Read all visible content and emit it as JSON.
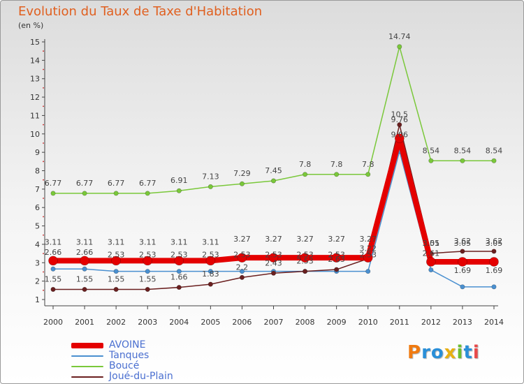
{
  "page": {
    "title": "Evolution du Taux de Taxe d'Habitation",
    "unit": "(en %)"
  },
  "logo": {
    "text": "Proxiti",
    "letters": [
      "P",
      "r",
      "o",
      "x",
      "i",
      "t",
      "i"
    ],
    "colors": [
      "#f07a10",
      "#2a8fd8",
      "#2a8fd8",
      "#e8b012",
      "#6cbe30",
      "#2a8fd8",
      "#e84a4a"
    ]
  },
  "chart_data": {
    "type": "line",
    "title": "Evolution du Taux de Taxe d'Habitation",
    "ylabel": "(en %)",
    "x": [
      "2000",
      "2001",
      "2002",
      "2003",
      "2004",
      "2005",
      "2006",
      "2007",
      "2008",
      "2009",
      "2010",
      "2011",
      "2012",
      "2013",
      "2014"
    ],
    "ylim": [
      1,
      15
    ],
    "yticks": [
      1,
      2,
      3,
      4,
      5,
      6,
      7,
      8,
      9,
      10,
      11,
      12,
      13,
      14,
      15
    ],
    "grid": false,
    "legend_position": "bottom-left",
    "series": [
      {
        "name": "AVOINE",
        "color": "#e40000",
        "values": [
          3.11,
          3.11,
          3.11,
          3.11,
          3.11,
          3.11,
          3.27,
          3.27,
          3.27,
          3.27,
          3.27,
          9.76,
          3.05,
          3.05,
          3.05
        ],
        "labels": [
          "3.11",
          "3.11",
          "3.11",
          "3.11",
          "3.11",
          "3.11",
          "3.27",
          "3.27",
          "3.27",
          "3.27",
          "3.27",
          "9.76",
          "3.05",
          "3.05",
          "3.05"
        ]
      },
      {
        "name": "Tanques",
        "color": "#4a90d0",
        "values": [
          2.66,
          2.66,
          2.53,
          2.53,
          2.53,
          2.53,
          2.53,
          2.53,
          2.53,
          2.53,
          2.53,
          9.06,
          2.61,
          1.69,
          1.69
        ],
        "labels": [
          "2.66",
          "2.66",
          "2.53",
          "2.53",
          "2.53",
          "2.53",
          "2.53",
          "2.53",
          "2.53",
          "2.53",
          "2.53",
          "9.06",
          "2.61",
          "1.69",
          "1.69"
        ]
      },
      {
        "name": "Boucé",
        "color": "#7ac83a",
        "values": [
          6.77,
          6.77,
          6.77,
          6.77,
          6.91,
          7.13,
          7.29,
          7.45,
          7.8,
          7.8,
          7.8,
          14.74,
          8.54,
          8.54,
          8.54
        ],
        "labels": [
          "6.77",
          "6.77",
          "6.77",
          "6.77",
          "6.91",
          "7.13",
          "7.29",
          "7.45",
          "7.8",
          "7.8",
          "7.8",
          "14.74",
          "8.54",
          "8.54",
          "8.54"
        ]
      },
      {
        "name": "Joué-du-Plain",
        "color": "#6a1f1f",
        "values": [
          1.55,
          1.55,
          1.55,
          1.55,
          1.66,
          1.83,
          2.2,
          2.43,
          2.53,
          2.63,
          3.22,
          10.5,
          3.51,
          3.62,
          3.62
        ],
        "labels": [
          "1.55",
          "1.55",
          "1.55",
          "1.55",
          "1.66",
          "1.83",
          "2.2",
          "2.43",
          "2.53",
          "2.63",
          "3.22",
          "10.5",
          "3.51",
          "3.62",
          "3.62"
        ]
      }
    ]
  }
}
